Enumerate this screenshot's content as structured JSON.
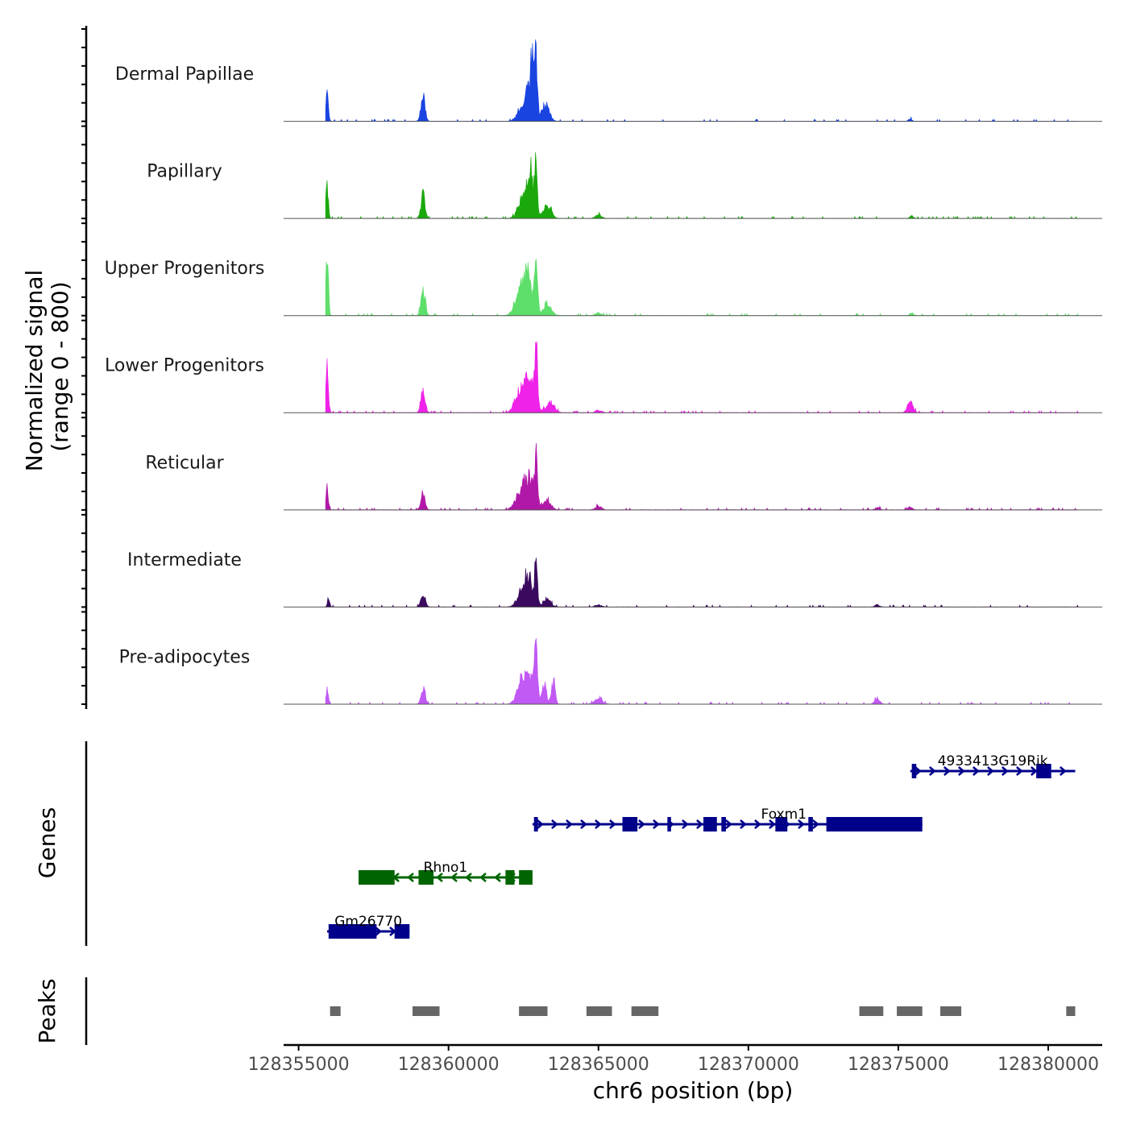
{
  "chart_data": {
    "type": "area",
    "title": "",
    "xlabel": "chr6 position (bp)",
    "ylabel": "Normalized signal",
    "ylabel_range": "(range 0 - 800)",
    "xlim": [
      128354500,
      128381800
    ],
    "x_ticks": [
      128355000,
      128360000,
      128365000,
      128370000,
      128375000,
      128380000
    ],
    "x_tick_labels": [
      "128355000",
      "128360000",
      "128365000",
      "128370000",
      "128375000",
      "128380000"
    ],
    "ylim": [
      0,
      800
    ],
    "coverage_tracks": [
      {
        "name": "Dermal Papillae",
        "color": "#1944e0",
        "peaks": [
          {
            "pos": 128355950,
            "height": 320,
            "width": 40
          },
          {
            "pos": 128359150,
            "height": 270,
            "width": 70
          },
          {
            "pos": 128362400,
            "height": 80,
            "width": 150
          },
          {
            "pos": 128362700,
            "height": 320,
            "width": 170
          },
          {
            "pos": 128362800,
            "height": 520,
            "width": 55
          },
          {
            "pos": 128362920,
            "height": 560,
            "width": 45
          },
          {
            "pos": 128363250,
            "height": 180,
            "width": 120
          },
          {
            "pos": 128375400,
            "height": 25,
            "width": 60
          }
        ]
      },
      {
        "name": "Papillary",
        "color": "#1aa80c",
        "peaks": [
          {
            "pos": 128355950,
            "height": 400,
            "width": 40
          },
          {
            "pos": 128359150,
            "height": 240,
            "width": 70
          },
          {
            "pos": 128362400,
            "height": 80,
            "width": 150
          },
          {
            "pos": 128362650,
            "height": 300,
            "width": 170
          },
          {
            "pos": 128362750,
            "height": 320,
            "width": 50
          },
          {
            "pos": 128362920,
            "height": 580,
            "width": 45
          },
          {
            "pos": 128363300,
            "height": 150,
            "width": 120
          },
          {
            "pos": 128365000,
            "height": 40,
            "width": 100
          },
          {
            "pos": 128375450,
            "height": 25,
            "width": 60
          }
        ]
      },
      {
        "name": "Upper Progenitors",
        "color": "#5ede6a",
        "peaks": [
          {
            "pos": 128355950,
            "height": 680,
            "width": 40
          },
          {
            "pos": 128359150,
            "height": 280,
            "width": 70
          },
          {
            "pos": 128362300,
            "height": 100,
            "width": 150
          },
          {
            "pos": 128362600,
            "height": 460,
            "width": 190
          },
          {
            "pos": 128362920,
            "height": 660,
            "width": 45
          },
          {
            "pos": 128363300,
            "height": 120,
            "width": 130
          },
          {
            "pos": 128365000,
            "height": 30,
            "width": 100
          },
          {
            "pos": 128375450,
            "height": 30,
            "width": 60
          }
        ]
      },
      {
        "name": "Lower Progenitors",
        "color": "#ee22e8",
        "peaks": [
          {
            "pos": 128355950,
            "height": 580,
            "width": 40
          },
          {
            "pos": 128359150,
            "height": 270,
            "width": 70
          },
          {
            "pos": 128362300,
            "height": 120,
            "width": 150
          },
          {
            "pos": 128362650,
            "height": 420,
            "width": 200
          },
          {
            "pos": 128362920,
            "height": 600,
            "width": 45
          },
          {
            "pos": 128363400,
            "height": 120,
            "width": 130
          },
          {
            "pos": 128365000,
            "height": 30,
            "width": 100
          },
          {
            "pos": 128375400,
            "height": 140,
            "width": 90
          }
        ]
      },
      {
        "name": "Reticular",
        "color": "#b019a8",
        "peaks": [
          {
            "pos": 128355950,
            "height": 280,
            "width": 40
          },
          {
            "pos": 128359150,
            "height": 170,
            "width": 70
          },
          {
            "pos": 128362300,
            "height": 80,
            "width": 150
          },
          {
            "pos": 128362650,
            "height": 370,
            "width": 190
          },
          {
            "pos": 128362920,
            "height": 450,
            "width": 45
          },
          {
            "pos": 128363300,
            "height": 100,
            "width": 120
          },
          {
            "pos": 128365000,
            "height": 40,
            "width": 100
          },
          {
            "pos": 128374300,
            "height": 25,
            "width": 70
          },
          {
            "pos": 128375400,
            "height": 35,
            "width": 70
          }
        ]
      },
      {
        "name": "Intermediate",
        "color": "#3a0a5e",
        "peaks": [
          {
            "pos": 128356000,
            "height": 80,
            "width": 40
          },
          {
            "pos": 128359150,
            "height": 160,
            "width": 70
          },
          {
            "pos": 128362400,
            "height": 90,
            "width": 150
          },
          {
            "pos": 128362650,
            "height": 310,
            "width": 170
          },
          {
            "pos": 128362920,
            "height": 400,
            "width": 45
          },
          {
            "pos": 128363300,
            "height": 80,
            "width": 120
          },
          {
            "pos": 128365000,
            "height": 25,
            "width": 100
          },
          {
            "pos": 128374300,
            "height": 30,
            "width": 70
          }
        ]
      },
      {
        "name": "Pre-adipocytes",
        "color": "#c159f5",
        "peaks": [
          {
            "pos": 128355950,
            "height": 170,
            "width": 40
          },
          {
            "pos": 128359150,
            "height": 180,
            "width": 70
          },
          {
            "pos": 128362400,
            "height": 120,
            "width": 150
          },
          {
            "pos": 128362650,
            "height": 320,
            "width": 190
          },
          {
            "pos": 128362920,
            "height": 640,
            "width": 45
          },
          {
            "pos": 128363200,
            "height": 220,
            "width": 70
          },
          {
            "pos": 128363500,
            "height": 240,
            "width": 60
          },
          {
            "pos": 128365000,
            "height": 60,
            "width": 130
          },
          {
            "pos": 128374300,
            "height": 70,
            "width": 80
          }
        ]
      }
    ],
    "genes": [
      {
        "name": "4933413G19Rik",
        "strand": "+",
        "color": "#00008b",
        "start": 128375400,
        "end": 128380900,
        "exons": [
          [
            128375450,
            128375600
          ],
          [
            128379600,
            128380100
          ]
        ]
      },
      {
        "name": "Foxm1",
        "strand": "+",
        "color": "#00008b",
        "start": 128362800,
        "end": 128375800,
        "exons": [
          [
            128362850,
            128362980
          ],
          [
            128365800,
            128366300
          ],
          [
            128367300,
            128367420
          ],
          [
            128368500,
            128368950
          ],
          [
            128369100,
            128369250
          ],
          [
            128370900,
            128371300
          ],
          [
            128372000,
            128372150
          ],
          [
            128372600,
            128375800
          ]
        ]
      },
      {
        "name": "Rhno1",
        "strand": "-",
        "color": "#006400",
        "start": 128357000,
        "end": 128362800,
        "exons": [
          [
            128357000,
            128358200
          ],
          [
            128359000,
            128359500
          ],
          [
            128361900,
            128362200
          ],
          [
            128362350,
            128362800
          ]
        ]
      },
      {
        "name": "Gm26770",
        "strand": "+",
        "color": "#00008b",
        "start": 128355950,
        "end": 128358700,
        "exons": [
          [
            128356000,
            128357600
          ],
          [
            128358200,
            128358700
          ]
        ]
      }
    ],
    "peak_regions": [
      [
        128356050,
        128356400
      ],
      [
        128358800,
        128359700
      ],
      [
        128362350,
        128363300
      ],
      [
        128364600,
        128365450
      ],
      [
        128366100,
        128367000
      ],
      [
        128373700,
        128374500
      ],
      [
        128374950,
        128375800
      ],
      [
        128376400,
        128377100
      ],
      [
        128380600,
        128380900
      ]
    ],
    "panel_labels": {
      "genes": "Genes",
      "peaks": "Peaks"
    }
  }
}
